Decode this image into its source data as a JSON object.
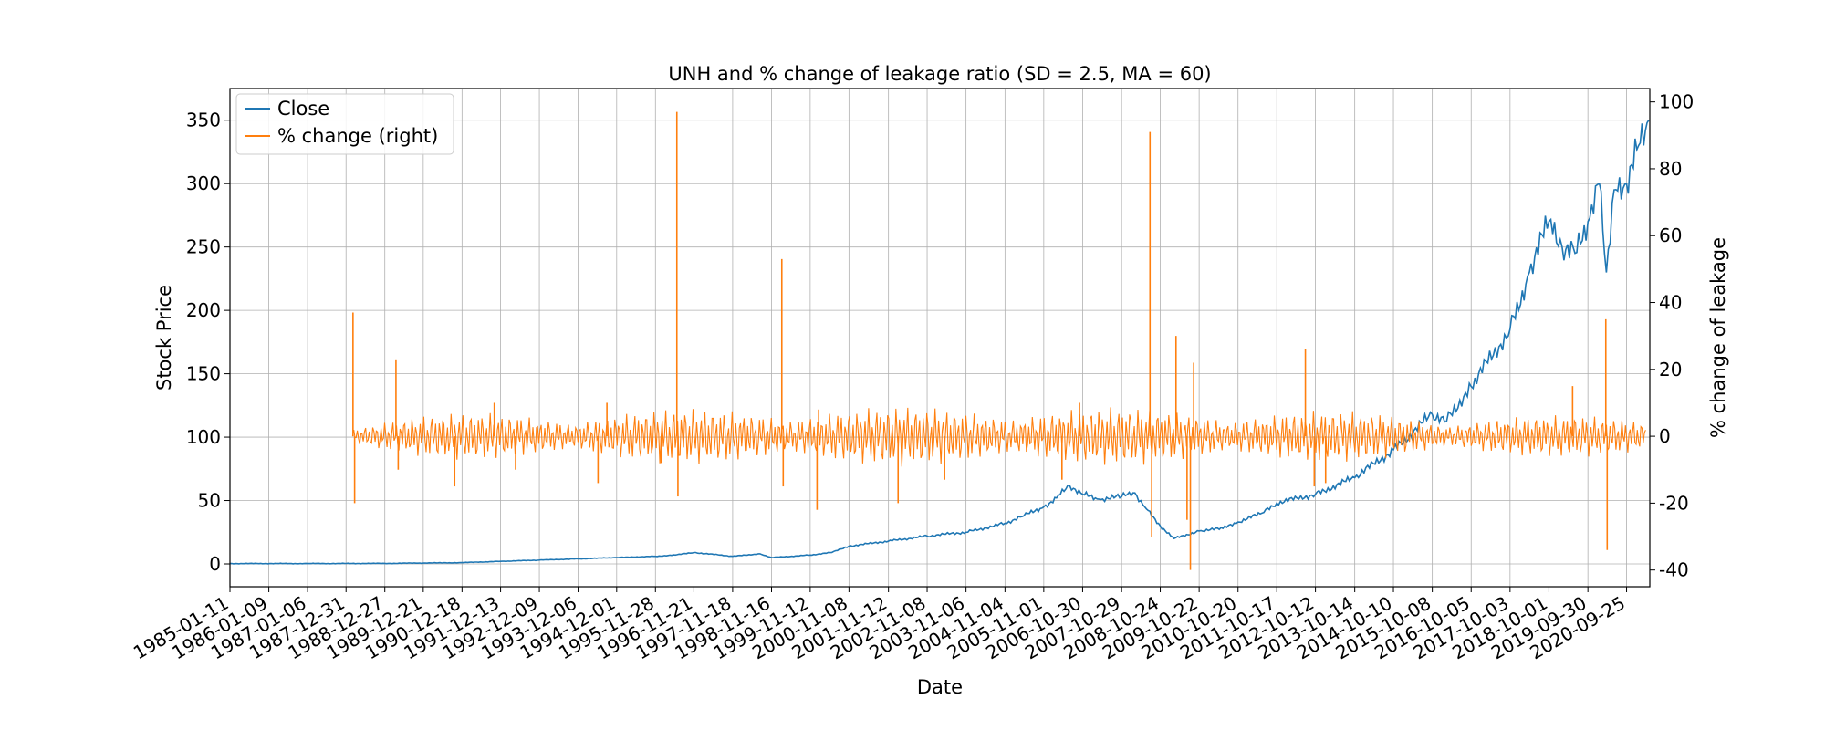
{
  "chart_data": {
    "type": "line",
    "title": "UNH and % change of leakage ratio (SD = 2.5, MA = 60)",
    "xlabel": "Date",
    "ylabel": "Stock Price",
    "ylabel_right": "% change of leakage",
    "xlim": [
      "1985-01-11",
      "2021-04-30"
    ],
    "ylim": [
      -18,
      375
    ],
    "ylim_right": [
      -45,
      104
    ],
    "yticks": [
      0,
      50,
      100,
      150,
      200,
      250,
      300,
      350
    ],
    "yticks_right": [
      -40,
      -20,
      0,
      20,
      40,
      60,
      80,
      100
    ],
    "xtick_labels": [
      "1985-01-11",
      "1986-01-09",
      "1987-01-06",
      "1987-12-31",
      "1988-12-27",
      "1989-12-21",
      "1990-12-18",
      "1991-12-13",
      "1992-12-09",
      "1993-12-06",
      "1994-12-01",
      "1995-11-28",
      "1996-11-21",
      "1997-11-18",
      "1998-11-16",
      "1999-11-12",
      "2000-11-08",
      "2001-11-12",
      "2002-11-08",
      "2003-11-06",
      "2004-11-04",
      "2005-11-01",
      "2006-10-30",
      "2007-10-29",
      "2008-10-24",
      "2009-10-22",
      "2010-10-20",
      "2011-10-17",
      "2012-10-12",
      "2013-10-14",
      "2014-10-10",
      "2015-10-08",
      "2016-10-05",
      "2017-10-03",
      "2018-10-01",
      "2019-09-30",
      "2020-09-25"
    ],
    "grid": true,
    "legend_position": "top-left",
    "colors": {
      "close": "#1f77b4",
      "pct": "#ff7f0e"
    },
    "series": [
      {
        "name": "Close",
        "axis": "left",
        "x": [
          "1985-01-11",
          "1987-01-06",
          "1988-12-27",
          "1990-12-18",
          "1991-12-13",
          "1992-12-09",
          "1993-12-06",
          "1994-12-01",
          "1995-11-28",
          "1996-06-01",
          "1996-11-21",
          "1997-11-18",
          "1998-08-01",
          "1998-11-16",
          "1999-11-12",
          "2000-06-01",
          "2000-11-08",
          "2001-11-12",
          "2002-11-08",
          "2003-11-06",
          "2004-11-04",
          "2005-05-01",
          "2005-11-01",
          "2006-03-01",
          "2006-07-01",
          "2006-10-30",
          "2007-04-01",
          "2007-10-29",
          "2008-03-01",
          "2008-06-01",
          "2008-10-24",
          "2009-03-01",
          "2009-10-22",
          "2010-06-01",
          "2010-10-20",
          "2011-06-01",
          "2011-10-17",
          "2012-10-12",
          "2013-10-14",
          "2014-10-10",
          "2015-10-08",
          "2016-02-01",
          "2016-10-05",
          "2017-10-03",
          "2018-04-01",
          "2018-10-01",
          "2019-02-01",
          "2019-06-01",
          "2019-09-30",
          "2020-01-15",
          "2020-03-20",
          "2020-06-01",
          "2020-09-25",
          "2021-01-15",
          "2021-04-20"
        ],
        "values": [
          0.3,
          0.3,
          0.4,
          1,
          2,
          3,
          4,
          5,
          6,
          7,
          9,
          6,
          8,
          5,
          7,
          9,
          14,
          18,
          22,
          25,
          32,
          38,
          45,
          52,
          62,
          55,
          51,
          53,
          56,
          45,
          30,
          20,
          26,
          28,
          33,
          40,
          48,
          55,
          68,
          90,
          118,
          112,
          140,
          185,
          230,
          270,
          250,
          245,
          270,
          300,
          230,
          295,
          300,
          330,
          350
        ]
      },
      {
        "name": "% change (right)",
        "axis": "right",
        "baseline": 0,
        "spikes": [
          {
            "x": "1988-03-05",
            "value": 37
          },
          {
            "x": "1988-03-20",
            "value": -20
          },
          {
            "x": "1989-04-10",
            "value": 23
          },
          {
            "x": "1989-05-01",
            "value": -10
          },
          {
            "x": "1990-10-10",
            "value": -15
          },
          {
            "x": "1991-10-15",
            "value": 10
          },
          {
            "x": "1992-05-01",
            "value": -10
          },
          {
            "x": "1994-06-10",
            "value": -14
          },
          {
            "x": "1994-09-01",
            "value": 10
          },
          {
            "x": "1996-01-20",
            "value": -8
          },
          {
            "x": "1996-06-15",
            "value": 97
          },
          {
            "x": "1996-06-25",
            "value": -18
          },
          {
            "x": "1999-02-20",
            "value": 53
          },
          {
            "x": "1999-03-05",
            "value": -15
          },
          {
            "x": "2000-01-15",
            "value": -22
          },
          {
            "x": "2000-01-30",
            "value": 8
          },
          {
            "x": "2002-02-10",
            "value": -20
          },
          {
            "x": "2003-04-20",
            "value": -13
          },
          {
            "x": "2006-04-20",
            "value": -13
          },
          {
            "x": "2006-10-01",
            "value": 10
          },
          {
            "x": "2008-07-20",
            "value": 91
          },
          {
            "x": "2008-08-05",
            "value": -30
          },
          {
            "x": "2009-03-20",
            "value": 30
          },
          {
            "x": "2009-08-01",
            "value": -40
          },
          {
            "x": "2009-09-01",
            "value": 22
          },
          {
            "x": "2009-07-01",
            "value": -25
          },
          {
            "x": "2012-07-10",
            "value": 26
          },
          {
            "x": "2012-10-01",
            "value": -15
          },
          {
            "x": "2013-01-15",
            "value": -14
          },
          {
            "x": "2020-03-15",
            "value": 35
          },
          {
            "x": "2020-03-28",
            "value": -34
          },
          {
            "x": "2019-05-10",
            "value": 15
          }
        ]
      }
    ]
  }
}
